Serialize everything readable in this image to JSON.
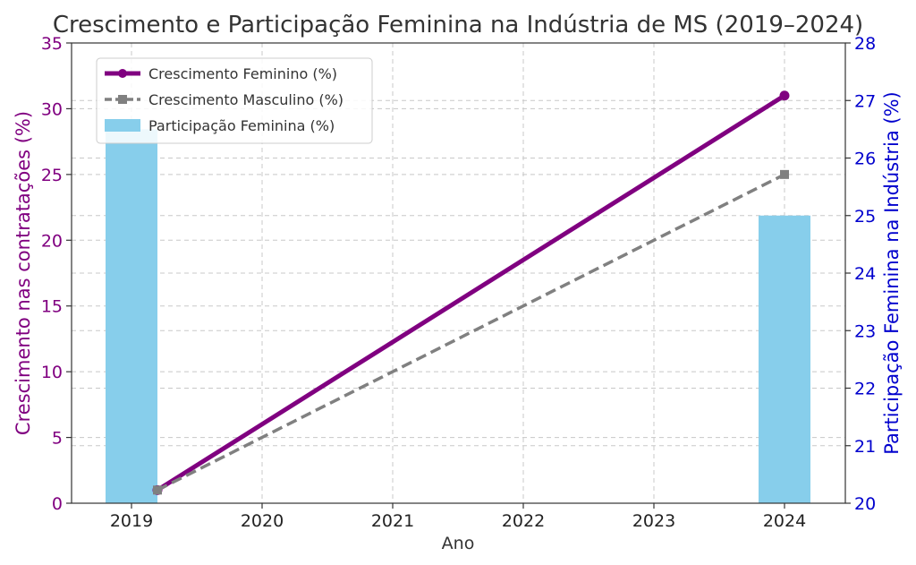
{
  "chart_data": {
    "type": "bar+line",
    "title": "Crescimento e Participação Feminina na Indústria de MS (2019–2024)",
    "xlabel": "Ano",
    "ylabel_left": "Crescimento nas contratações (%)",
    "ylabel_right": "Participação Feminina na Indústria (%)",
    "categories": [
      "2019",
      "2020",
      "2021",
      "2022",
      "2023",
      "2024"
    ],
    "ylim_left": [
      0,
      35
    ],
    "ylim_right": [
      20,
      28
    ],
    "yticks_left": [
      0,
      5,
      10,
      15,
      20,
      25,
      30,
      35
    ],
    "yticks_right": [
      20,
      21,
      22,
      23,
      24,
      25,
      26,
      27,
      28
    ],
    "grid": true,
    "legend_position": "top-left",
    "series": [
      {
        "name": "Crescimento Feminino (%)",
        "kind": "line",
        "axis": "left",
        "color": "#800080",
        "marker": "circle",
        "points": [
          {
            "x": "2019",
            "y": 1
          },
          {
            "x": "2024",
            "y": 31
          }
        ]
      },
      {
        "name": "Crescimento Masculino (%)",
        "kind": "line",
        "axis": "left",
        "color": "#808080",
        "marker": "square",
        "dashed": true,
        "points": [
          {
            "x": "2019",
            "y": 1
          },
          {
            "x": "2024",
            "y": 25
          }
        ]
      },
      {
        "name": "Participação Feminina (%)",
        "kind": "bar",
        "axis": "right",
        "color": "#87CEEB",
        "points": [
          {
            "x": "2019",
            "y": 26.5
          },
          {
            "x": "2024",
            "y": 25
          }
        ]
      }
    ],
    "colors": {
      "left_axis": "#800080",
      "right_axis": "#0000CD"
    }
  }
}
